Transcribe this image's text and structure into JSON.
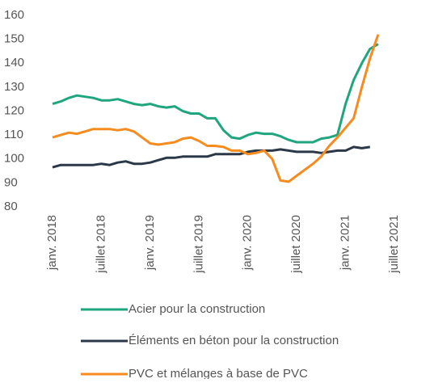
{
  "chart_data": {
    "type": "line",
    "categories": [
      "janv. 2018",
      null,
      null,
      null,
      null,
      null,
      "juillet 2018",
      null,
      null,
      null,
      null,
      null,
      "janv. 2019",
      null,
      null,
      null,
      null,
      null,
      "juillet 2019",
      null,
      null,
      null,
      null,
      null,
      "janv. 2020",
      null,
      null,
      null,
      null,
      null,
      "juillet 2020",
      null,
      null,
      null,
      null,
      null,
      "janv. 2021",
      null,
      null,
      null,
      null,
      null,
      "juillet 2021"
    ],
    "series": [
      {
        "name": "Acier pour la construction",
        "color": "#1fa67f",
        "values": [
          123,
          124,
          125.5,
          126.5,
          126,
          125.5,
          124.5,
          124.5,
          125,
          124,
          123,
          122.5,
          123,
          122,
          121.5,
          122,
          120,
          119,
          119,
          117,
          117,
          112,
          109,
          108.5,
          110,
          111,
          110.5,
          110.5,
          109.5,
          108,
          107,
          107,
          107,
          108.5,
          109,
          110,
          123,
          133,
          140,
          146,
          148,
          null,
          null
        ]
      },
      {
        "name": "Éléments en béton pour la construction",
        "color": "#2b3848",
        "values": [
          96.5,
          97.5,
          97.5,
          97.5,
          97.5,
          97.5,
          98,
          97.5,
          98.5,
          99,
          98,
          98,
          98.5,
          99.5,
          100.5,
          100.5,
          101,
          101,
          101,
          101,
          102,
          102,
          102,
          102,
          103,
          103.5,
          103.5,
          103.5,
          104,
          103.5,
          103,
          103,
          103,
          102.5,
          103,
          103.5,
          103.5,
          105,
          104.5,
          105,
          null,
          null,
          null
        ]
      },
      {
        "name": "PVC et mélanges à base de PVC",
        "color": "#f68b1f",
        "values": [
          109,
          110,
          111,
          110.5,
          111.5,
          112.5,
          112.5,
          112.5,
          112,
          112.5,
          111.5,
          109,
          106.5,
          106,
          106.5,
          107,
          108.5,
          109,
          107.5,
          105.5,
          105.5,
          105,
          103.5,
          103.5,
          102,
          102.5,
          103.5,
          100,
          91,
          90.5,
          93,
          95.5,
          98,
          101,
          105.5,
          109,
          113,
          117,
          130,
          142,
          152,
          null,
          null
        ]
      }
    ],
    "ylim": [
      80,
      160
    ],
    "yticks": [
      80,
      90,
      100,
      110,
      120,
      130,
      140,
      150,
      160
    ],
    "grid": false
  }
}
